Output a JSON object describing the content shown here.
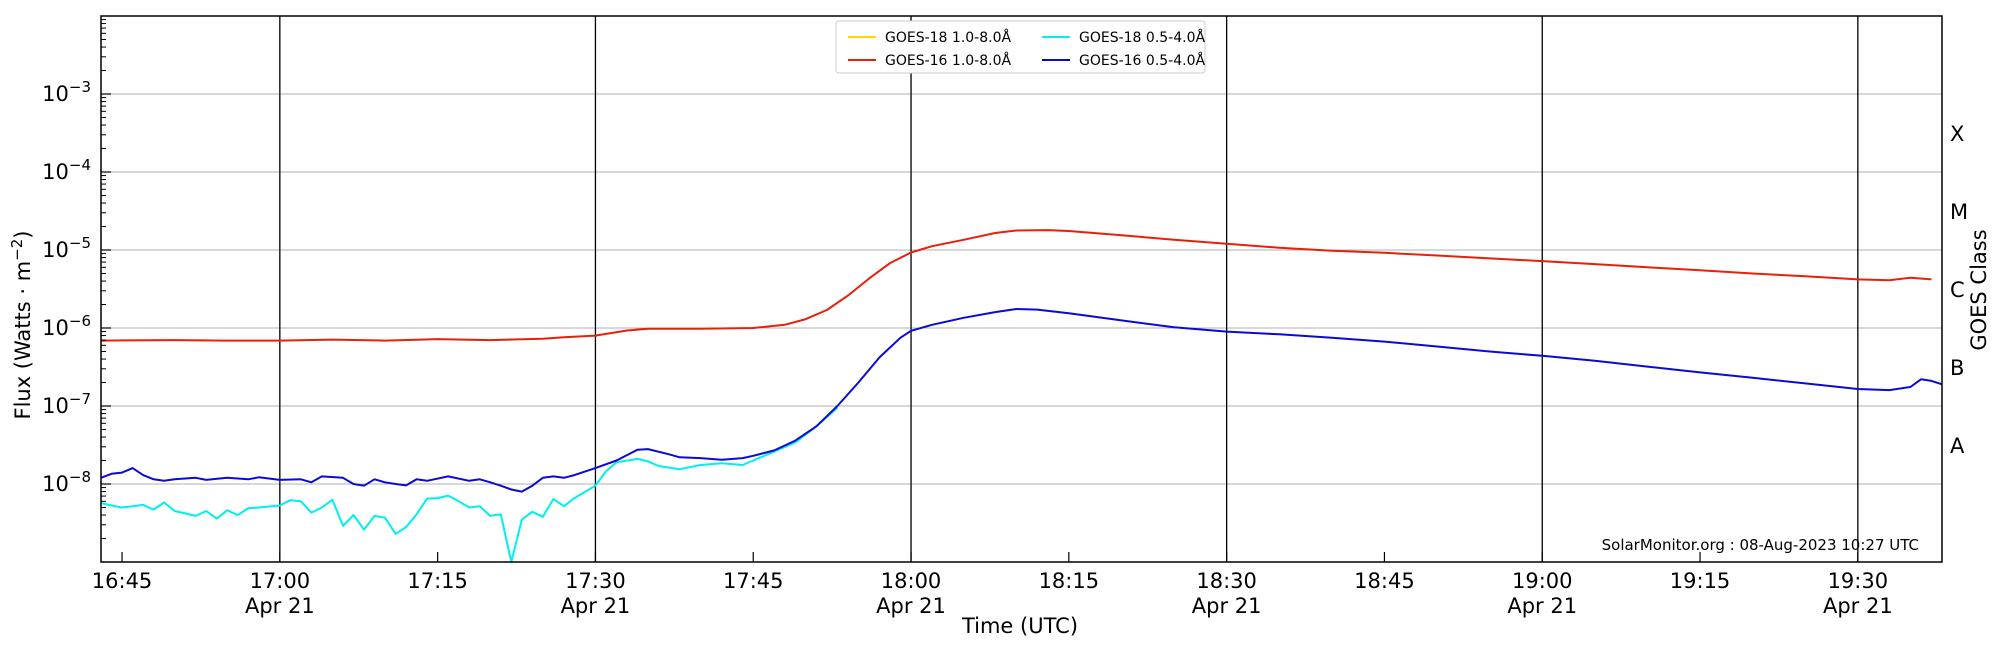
{
  "chart_data": {
    "type": "line",
    "xlabel": "Time (UTC)",
    "ylabel_main": "Flux (Watts · m",
    "ylabel_sup": "−2",
    "ylabel_end": ")",
    "right_axis_label": "GOES Class",
    "y_scale": "log",
    "xlim": [
      "16:43",
      "19:38"
    ],
    "ylim": [
      1e-09,
      0.01
    ],
    "grid": "horizontal",
    "legend_placement": "top-center",
    "credit": "SolarMonitor.org : 08-Aug-2023 10:27 UTC",
    "x_ticks": [
      {
        "time": "16:45",
        "label": "16:45",
        "date": ""
      },
      {
        "time": "17:00",
        "label": "17:00",
        "date": "Apr 21"
      },
      {
        "time": "17:15",
        "label": "17:15",
        "date": ""
      },
      {
        "time": "17:30",
        "label": "17:30",
        "date": "Apr 21"
      },
      {
        "time": "17:45",
        "label": "17:45",
        "date": ""
      },
      {
        "time": "18:00",
        "label": "18:00",
        "date": "Apr 21"
      },
      {
        "time": "18:15",
        "label": "18:15",
        "date": ""
      },
      {
        "time": "18:30",
        "label": "18:30",
        "date": "Apr 21"
      },
      {
        "time": "18:45",
        "label": "18:45",
        "date": ""
      },
      {
        "time": "19:00",
        "label": "19:00",
        "date": "Apr 21"
      },
      {
        "time": "19:15",
        "label": "19:15",
        "date": ""
      },
      {
        "time": "19:30",
        "label": "19:30",
        "date": "Apr 21"
      }
    ],
    "y_ticks": [
      {
        "value": 1e-08,
        "base": "10",
        "exp": "−8"
      },
      {
        "value": 1e-07,
        "base": "10",
        "exp": "−7"
      },
      {
        "value": 1e-06,
        "base": "10",
        "exp": "−6"
      },
      {
        "value": 1e-05,
        "base": "10",
        "exp": "−5"
      },
      {
        "value": 0.0001,
        "base": "10",
        "exp": "−4"
      },
      {
        "value": 0.001,
        "base": "10",
        "exp": "−3"
      }
    ],
    "goes_classes": [
      {
        "label": "A",
        "value": 3.16e-08
      },
      {
        "label": "B",
        "value": 3.16e-07
      },
      {
        "label": "C",
        "value": 3.16e-06
      },
      {
        "label": "M",
        "value": 3.16e-05
      },
      {
        "label": "X",
        "value": 0.000316
      }
    ],
    "series": [
      {
        "name": "GOES-18 1.0-8.0Å",
        "color": "#ffd700",
        "points": []
      },
      {
        "name": "GOES-16 1.0-8.0Å",
        "color": "#e8200a",
        "points": [
          [
            "16:43",
            6.9e-07
          ],
          [
            "16:50",
            7e-07
          ],
          [
            "16:55",
            6.9e-07
          ],
          [
            "17:00",
            6.9e-07
          ],
          [
            "17:05",
            7.1e-07
          ],
          [
            "17:10",
            6.9e-07
          ],
          [
            "17:15",
            7.2e-07
          ],
          [
            "17:20",
            7e-07
          ],
          [
            "17:25",
            7.3e-07
          ],
          [
            "17:27",
            7.6e-07
          ],
          [
            "17:30",
            8e-07
          ],
          [
            "17:33",
            9.3e-07
          ],
          [
            "17:35",
            9.8e-07
          ],
          [
            "17:40",
            9.8e-07
          ],
          [
            "17:45",
            1e-06
          ],
          [
            "17:48",
            1.1e-06
          ],
          [
            "17:50",
            1.3e-06
          ],
          [
            "17:52",
            1.7e-06
          ],
          [
            "17:54",
            2.6e-06
          ],
          [
            "17:56",
            4.3e-06
          ],
          [
            "17:58",
            6.8e-06
          ],
          [
            "18:00",
            9.3e-06
          ],
          [
            "18:02",
            1.12e-05
          ],
          [
            "18:05",
            1.35e-05
          ],
          [
            "18:08",
            1.65e-05
          ],
          [
            "18:10",
            1.78e-05
          ],
          [
            "18:13",
            1.8e-05
          ],
          [
            "18:15",
            1.75e-05
          ],
          [
            "18:20",
            1.55e-05
          ],
          [
            "18:25",
            1.35e-05
          ],
          [
            "18:30",
            1.2e-05
          ],
          [
            "18:35",
            1.07e-05
          ],
          [
            "18:40",
            9.8e-06
          ],
          [
            "18:45",
            9.2e-06
          ],
          [
            "18:50",
            8.5e-06
          ],
          [
            "18:55",
            7.8e-06
          ],
          [
            "19:00",
            7.2e-06
          ],
          [
            "19:05",
            6.6e-06
          ],
          [
            "19:10",
            6e-06
          ],
          [
            "19:15",
            5.5e-06
          ],
          [
            "19:20",
            5e-06
          ],
          [
            "19:25",
            4.6e-06
          ],
          [
            "19:30",
            4.2e-06
          ],
          [
            "19:33",
            4.1e-06
          ],
          [
            "19:35",
            4.4e-06
          ],
          [
            "19:37",
            4.2e-06
          ]
        ]
      },
      {
        "name": "GOES-18 0.5-4.0Å",
        "color": "#00f0f0",
        "points": [
          [
            "16:43",
            5.7e-09
          ],
          [
            "16:44",
            5.3e-09
          ],
          [
            "16:45",
            5e-09
          ],
          [
            "16:46",
            5.2e-09
          ],
          [
            "16:47",
            5.4e-09
          ],
          [
            "16:48",
            4.7e-09
          ],
          [
            "16:49",
            5.8e-09
          ],
          [
            "16:50",
            4.5e-09
          ],
          [
            "16:51",
            4.2e-09
          ],
          [
            "16:52",
            3.9e-09
          ],
          [
            "16:53",
            4.5e-09
          ],
          [
            "16:54",
            3.6e-09
          ],
          [
            "16:55",
            4.6e-09
          ],
          [
            "16:56",
            4e-09
          ],
          [
            "16:57",
            4.9e-09
          ],
          [
            "16:58",
            5e-09
          ],
          [
            "17:00",
            5.3e-09
          ],
          [
            "17:01",
            6.2e-09
          ],
          [
            "17:02",
            6e-09
          ],
          [
            "17:03",
            4.3e-09
          ],
          [
            "17:04",
            5e-09
          ],
          [
            "17:05",
            6.3e-09
          ],
          [
            "17:06",
            2.9e-09
          ],
          [
            "17:07",
            4e-09
          ],
          [
            "17:08",
            2.6e-09
          ],
          [
            "17:09",
            3.9e-09
          ],
          [
            "17:10",
            3.7e-09
          ],
          [
            "17:11",
            2.3e-09
          ],
          [
            "17:12",
            2.8e-09
          ],
          [
            "17:13",
            4.1e-09
          ],
          [
            "17:14",
            6.5e-09
          ],
          [
            "17:15",
            6.6e-09
          ],
          [
            "17:16",
            7.1e-09
          ],
          [
            "17:17",
            6e-09
          ],
          [
            "17:18",
            5e-09
          ],
          [
            "17:19",
            5.2e-09
          ],
          [
            "17:20",
            3.9e-09
          ],
          [
            "17:21",
            4.1e-09
          ],
          [
            "17:22",
            1e-09
          ],
          [
            "17:23",
            3.5e-09
          ],
          [
            "17:24",
            4.4e-09
          ],
          [
            "17:25",
            3.8e-09
          ],
          [
            "17:26",
            6.4e-09
          ],
          [
            "17:27",
            5.2e-09
          ],
          [
            "17:28",
            6.6e-09
          ],
          [
            "17:30",
            9.5e-09
          ],
          [
            "17:31",
            1.45e-08
          ],
          [
            "17:32",
            1.9e-08
          ],
          [
            "17:34",
            2.1e-08
          ],
          [
            "17:35",
            1.95e-08
          ],
          [
            "17:36",
            1.7e-08
          ],
          [
            "17:38",
            1.55e-08
          ],
          [
            "17:40",
            1.75e-08
          ],
          [
            "17:42",
            1.85e-08
          ],
          [
            "17:44",
            1.75e-08
          ],
          [
            "17:45",
            2e-08
          ],
          [
            "17:47",
            2.6e-08
          ],
          [
            "17:49",
            3.4e-08
          ],
          [
            "17:51",
            5.5e-08
          ],
          [
            "17:53",
            9.5e-08
          ]
        ]
      },
      {
        "name": "GOES-16 0.5-4.0Å",
        "color": "#0a0ad8",
        "points": [
          [
            "16:43",
            1.2e-08
          ],
          [
            "16:44",
            1.35e-08
          ],
          [
            "16:45",
            1.4e-08
          ],
          [
            "16:46",
            1.6e-08
          ],
          [
            "16:47",
            1.3e-08
          ],
          [
            "16:48",
            1.15e-08
          ],
          [
            "16:49",
            1.1e-08
          ],
          [
            "16:50",
            1.15e-08
          ],
          [
            "16:52",
            1.2e-08
          ],
          [
            "16:53",
            1.13e-08
          ],
          [
            "16:55",
            1.2e-08
          ],
          [
            "16:57",
            1.15e-08
          ],
          [
            "16:58",
            1.22e-08
          ],
          [
            "17:00",
            1.13e-08
          ],
          [
            "17:02",
            1.15e-08
          ],
          [
            "17:03",
            1.05e-08
          ],
          [
            "17:04",
            1.25e-08
          ],
          [
            "17:06",
            1.2e-08
          ],
          [
            "17:07",
            1e-08
          ],
          [
            "17:08",
            9.5e-09
          ],
          [
            "17:09",
            1.15e-08
          ],
          [
            "17:10",
            1.05e-08
          ],
          [
            "17:11",
            1e-08
          ],
          [
            "17:12",
            9.6e-09
          ],
          [
            "17:13",
            1.15e-08
          ],
          [
            "17:14",
            1.1e-08
          ],
          [
            "17:16",
            1.25e-08
          ],
          [
            "17:18",
            1.1e-08
          ],
          [
            "17:19",
            1.15e-08
          ],
          [
            "17:20",
            1.05e-08
          ],
          [
            "17:21",
            9.5e-09
          ],
          [
            "17:22",
            8.5e-09
          ],
          [
            "17:23",
            8e-09
          ],
          [
            "17:24",
            9.5e-09
          ],
          [
            "17:25",
            1.2e-08
          ],
          [
            "17:26",
            1.25e-08
          ],
          [
            "17:27",
            1.2e-08
          ],
          [
            "17:28",
            1.3e-08
          ],
          [
            "17:30",
            1.6e-08
          ],
          [
            "17:32",
            2e-08
          ],
          [
            "17:34",
            2.75e-08
          ],
          [
            "17:35",
            2.8e-08
          ],
          [
            "17:37",
            2.4e-08
          ],
          [
            "17:38",
            2.2e-08
          ],
          [
            "17:40",
            2.15e-08
          ],
          [
            "17:42",
            2.05e-08
          ],
          [
            "17:44",
            2.15e-08
          ],
          [
            "17:45",
            2.3e-08
          ],
          [
            "17:47",
            2.7e-08
          ],
          [
            "17:49",
            3.6e-08
          ],
          [
            "17:51",
            5.5e-08
          ],
          [
            "17:53",
            1e-07
          ],
          [
            "17:55",
            2e-07
          ],
          [
            "17:57",
            4.2e-07
          ],
          [
            "17:59",
            7.5e-07
          ],
          [
            "18:00",
            9.2e-07
          ],
          [
            "18:02",
            1.1e-06
          ],
          [
            "18:05",
            1.35e-06
          ],
          [
            "18:08",
            1.6e-06
          ],
          [
            "18:10",
            1.75e-06
          ],
          [
            "18:12",
            1.72e-06
          ],
          [
            "18:15",
            1.55e-06
          ],
          [
            "18:20",
            1.25e-06
          ],
          [
            "18:25",
            1.02e-06
          ],
          [
            "18:30",
            9e-07
          ],
          [
            "18:35",
            8.3e-07
          ],
          [
            "18:40",
            7.5e-07
          ],
          [
            "18:45",
            6.7e-07
          ],
          [
            "18:50",
            5.8e-07
          ],
          [
            "18:55",
            5e-07
          ],
          [
            "19:00",
            4.4e-07
          ],
          [
            "19:05",
            3.8e-07
          ],
          [
            "19:10",
            3.2e-07
          ],
          [
            "19:15",
            2.7e-07
          ],
          [
            "19:20",
            2.3e-07
          ],
          [
            "19:25",
            1.95e-07
          ],
          [
            "19:30",
            1.65e-07
          ],
          [
            "19:33",
            1.6e-07
          ],
          [
            "19:35",
            1.75e-07
          ],
          [
            "19:36",
            2.2e-07
          ],
          [
            "19:37",
            2.1e-07
          ],
          [
            "19:38",
            1.9e-07
          ]
        ]
      }
    ]
  }
}
